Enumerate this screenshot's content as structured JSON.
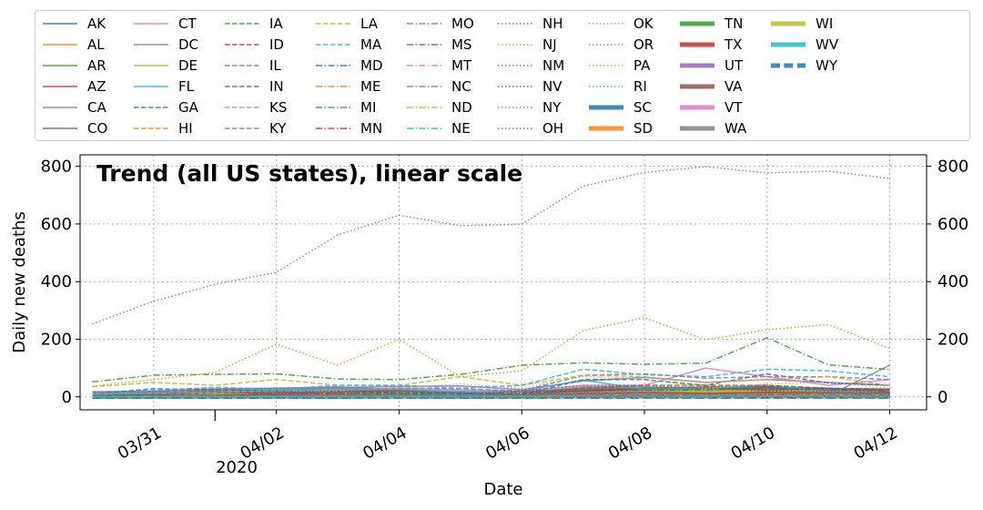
{
  "chart_data": {
    "type": "line",
    "title": "Trend (all US states), linear scale",
    "xlabel": "Date",
    "ylabel": "Daily new deaths",
    "x_year_label": "2020",
    "x_ticks": [
      "03/31",
      "04/02",
      "04/04",
      "04/06",
      "04/08",
      "04/10",
      "04/12"
    ],
    "x": [
      "2020-03-30",
      "2020-03-31",
      "2020-04-01",
      "2020-04-02",
      "2020-04-03",
      "2020-04-04",
      "2020-04-05",
      "2020-04-06",
      "2020-04-07",
      "2020-04-08",
      "2020-04-09",
      "2020-04-10",
      "2020-04-11",
      "2020-04-12"
    ],
    "xlim": [
      "2020-03-29.8",
      "2020-04-12.6"
    ],
    "ylim": [
      -45,
      840
    ],
    "y_ticks": [
      0,
      200,
      400,
      600,
      800
    ],
    "grid": true,
    "legend_position": "top",
    "series": [
      {
        "name": "AK",
        "color": "#1f77b4",
        "dash": "solid",
        "width": 1.5,
        "values": [
          0,
          0,
          0,
          1,
          0,
          0,
          1,
          0,
          0,
          0,
          1,
          0,
          0,
          0
        ]
      },
      {
        "name": "AL",
        "color": "#ff7f0e",
        "dash": "solid",
        "width": 1.5,
        "values": [
          2,
          4,
          5,
          6,
          8,
          4,
          3,
          5,
          12,
          10,
          8,
          12,
          8,
          6
        ]
      },
      {
        "name": "AR",
        "color": "#2ca02c",
        "dash": "solid",
        "width": 1.5,
        "values": [
          1,
          1,
          2,
          2,
          2,
          3,
          2,
          2,
          3,
          2,
          3,
          4,
          3,
          2
        ]
      },
      {
        "name": "AZ",
        "color": "#d62728",
        "dash": "solid",
        "width": 1.5,
        "values": [
          3,
          5,
          5,
          6,
          5,
          6,
          5,
          4,
          11,
          15,
          12,
          16,
          14,
          12
        ]
      },
      {
        "name": "CA",
        "color": "#9467bd",
        "dash": "solid",
        "width": 1.5,
        "values": [
          18,
          20,
          28,
          30,
          32,
          36,
          38,
          25,
          55,
          68,
          50,
          60,
          50,
          40
        ]
      },
      {
        "name": "CO",
        "color": "#8c564b",
        "dash": "solid",
        "width": 1.5,
        "values": [
          6,
          8,
          18,
          10,
          20,
          20,
          14,
          6,
          22,
          30,
          32,
          24,
          30,
          16
        ]
      },
      {
        "name": "CT",
        "color": "#e377c2",
        "dash": "solid",
        "width": 1.5,
        "values": [
          8,
          12,
          16,
          20,
          24,
          30,
          25,
          20,
          40,
          40,
          100,
          70,
          40,
          60
        ]
      },
      {
        "name": "DC",
        "color": "#7f7f7f",
        "dash": "solid",
        "width": 1.5,
        "values": [
          2,
          1,
          2,
          1,
          3,
          4,
          2,
          3,
          3,
          4,
          3,
          3,
          4,
          110
        ]
      },
      {
        "name": "DE",
        "color": "#bcbd22",
        "dash": "solid",
        "width": 1.5,
        "values": [
          0,
          1,
          1,
          2,
          1,
          2,
          1,
          3,
          3,
          4,
          2,
          4,
          5,
          3
        ]
      },
      {
        "name": "FL",
        "color": "#17becf",
        "dash": "solid",
        "width": 1.5,
        "values": [
          8,
          12,
          20,
          20,
          30,
          26,
          16,
          20,
          58,
          26,
          30,
          40,
          20,
          20
        ]
      },
      {
        "name": "GA",
        "color": "#1f77b4",
        "dash": "dashed",
        "width": 1.5,
        "values": [
          10,
          28,
          25,
          20,
          20,
          14,
          13,
          8,
          60,
          60,
          40,
          80,
          48,
          40
        ]
      },
      {
        "name": "HI",
        "color": "#ff7f0e",
        "dash": "dashed",
        "width": 1.5,
        "values": [
          0,
          0,
          0,
          1,
          0,
          0,
          1,
          0,
          0,
          0,
          2,
          0,
          0,
          1
        ]
      },
      {
        "name": "IA",
        "color": "#2ca02c",
        "dash": "dashed",
        "width": 1.5,
        "values": [
          1,
          1,
          1,
          2,
          3,
          1,
          2,
          2,
          2,
          3,
          2,
          4,
          2,
          3
        ]
      },
      {
        "name": "ID",
        "color": "#d62728",
        "dash": "dashed",
        "width": 1.5,
        "values": [
          1,
          1,
          1,
          2,
          2,
          1,
          2,
          2,
          1,
          3,
          2,
          3,
          2,
          2
        ]
      },
      {
        "name": "IL",
        "color": "#9467bd",
        "dash": "dashed",
        "width": 1.5,
        "values": [
          10,
          15,
          22,
          16,
          20,
          30,
          28,
          20,
          75,
          80,
          65,
          70,
          70,
          60
        ]
      },
      {
        "name": "IN",
        "color": "#8c564b",
        "dash": "dashed",
        "width": 1.5,
        "values": [
          5,
          8,
          14,
          15,
          12,
          12,
          10,
          10,
          30,
          40,
          40,
          40,
          30,
          26
        ]
      },
      {
        "name": "KS",
        "color": "#e377c2",
        "dash": "dashed",
        "width": 1.5,
        "values": [
          1,
          2,
          2,
          2,
          3,
          3,
          2,
          3,
          3,
          4,
          3,
          5,
          4,
          3
        ]
      },
      {
        "name": "KY",
        "color": "#7f7f7f",
        "dash": "dashed",
        "width": 1.5,
        "values": [
          3,
          2,
          2,
          5,
          4,
          5,
          3,
          5,
          7,
          6,
          10,
          8,
          6,
          5
        ]
      },
      {
        "name": "LA",
        "color": "#bcbd22",
        "dash": "dashed",
        "width": 1.5,
        "values": [
          35,
          50,
          40,
          60,
          40,
          40,
          70,
          40,
          75,
          70,
          50,
          60,
          70,
          40
        ]
      },
      {
        "name": "MA",
        "color": "#17becf",
        "dash": "dashed",
        "width": 1.5,
        "values": [
          8,
          22,
          33,
          26,
          40,
          40,
          30,
          40,
          96,
          77,
          70,
          96,
          90,
          70
        ]
      },
      {
        "name": "MD",
        "color": "#1f77b4",
        "dash": "dashdot",
        "width": 1.5,
        "values": [
          3,
          5,
          5,
          10,
          12,
          12,
          10,
          15,
          20,
          23,
          25,
          30,
          25,
          20
        ]
      },
      {
        "name": "ME",
        "color": "#ff7f0e",
        "dash": "dashdot",
        "width": 1.5,
        "values": [
          0,
          1,
          1,
          1,
          2,
          1,
          1,
          1,
          2,
          2,
          1,
          2,
          1,
          2
        ]
      },
      {
        "name": "MI",
        "color": "#2ca02c",
        "dash": "dashdot",
        "width": 1.5,
        "values": [
          52,
          75,
          78,
          80,
          62,
          60,
          78,
          110,
          118,
          113,
          117,
          205,
          111,
          95
        ]
      },
      {
        "name": "MN",
        "color": "#d62728",
        "dash": "dashdot",
        "width": 1.5,
        "values": [
          1,
          2,
          2,
          3,
          4,
          3,
          4,
          5,
          5,
          6,
          4,
          7,
          9,
          5
        ]
      },
      {
        "name": "MO",
        "color": "#9467bd",
        "dash": "dashdot",
        "width": 1.5,
        "values": [
          1,
          4,
          5,
          5,
          5,
          6,
          8,
          5,
          12,
          14,
          8,
          10,
          12,
          10
        ]
      },
      {
        "name": "MS",
        "color": "#8c564b",
        "dash": "dashdot",
        "width": 1.5,
        "values": [
          1,
          3,
          4,
          5,
          7,
          6,
          5,
          6,
          7,
          8,
          6,
          8,
          10,
          8
        ]
      },
      {
        "name": "MT",
        "color": "#e377c2",
        "dash": "dashdot",
        "width": 1.5,
        "values": [
          0,
          1,
          0,
          1,
          1,
          0,
          1,
          1,
          1,
          0,
          1,
          1,
          1,
          0
        ]
      },
      {
        "name": "NC",
        "color": "#7f7f7f",
        "dash": "dashdot",
        "width": 1.5,
        "values": [
          1,
          3,
          2,
          5,
          4,
          6,
          5,
          4,
          8,
          9,
          7,
          10,
          8,
          6
        ]
      },
      {
        "name": "ND",
        "color": "#bcbd22",
        "dash": "dashdot",
        "width": 1.5,
        "values": [
          0,
          0,
          1,
          0,
          1,
          1,
          0,
          1,
          1,
          1,
          0,
          1,
          1,
          0
        ]
      },
      {
        "name": "NE",
        "color": "#17becf",
        "dash": "dashdot",
        "width": 1.5,
        "values": [
          0,
          1,
          1,
          1,
          0,
          2,
          1,
          1,
          1,
          2,
          1,
          2,
          1,
          1
        ]
      },
      {
        "name": "NH",
        "color": "#1f77b4",
        "dash": "dotted",
        "width": 1.5,
        "values": [
          1,
          1,
          0,
          1,
          1,
          1,
          0,
          2,
          1,
          1,
          2,
          1,
          1,
          2
        ]
      },
      {
        "name": "NJ",
        "color": "#ff7f0e",
        "dash": "dotted",
        "width": 1.5,
        "values": [
          37,
          60,
          85,
          183,
          110,
          200,
          70,
          90,
          230,
          275,
          198,
          233,
          251,
          168
        ]
      },
      {
        "name": "NM",
        "color": "#2ca02c",
        "dash": "dotted",
        "width": 1.5,
        "values": [
          0,
          1,
          0,
          1,
          1,
          2,
          1,
          1,
          2,
          2,
          1,
          2,
          3,
          2
        ]
      },
      {
        "name": "NV",
        "color": "#d62728",
        "dash": "dotted",
        "width": 1.5,
        "values": [
          3,
          4,
          5,
          8,
          5,
          6,
          4,
          7,
          14,
          12,
          10,
          12,
          8,
          7
        ]
      },
      {
        "name": "NY",
        "color": "#9467bd",
        "dash": "dotted",
        "width": 1.5,
        "values": [
          253,
          332,
          391,
          432,
          562,
          630,
          594,
          599,
          731,
          779,
          799,
          777,
          783,
          758
        ]
      },
      {
        "name": "OH",
        "color": "#8c564b",
        "dash": "dotted",
        "width": 1.5,
        "values": [
          5,
          10,
          20,
          10,
          10,
          20,
          10,
          20,
          40,
          40,
          30,
          20,
          20,
          16
        ]
      },
      {
        "name": "OK",
        "color": "#e377c2",
        "dash": "dotted",
        "width": 1.5,
        "values": [
          2,
          3,
          2,
          4,
          5,
          3,
          4,
          5,
          6,
          7,
          5,
          6,
          7,
          5
        ]
      },
      {
        "name": "OR",
        "color": "#7f7f7f",
        "dash": "dotted",
        "width": 1.5,
        "values": [
          1,
          1,
          2,
          1,
          2,
          1,
          2,
          2,
          1,
          3,
          2,
          3,
          2,
          3
        ]
      },
      {
        "name": "PA",
        "color": "#bcbd22",
        "dash": "dotted",
        "width": 1.5,
        "values": [
          10,
          12,
          16,
          20,
          20,
          30,
          45,
          30,
          70,
          63,
          30,
          45,
          50,
          30
        ]
      },
      {
        "name": "RI",
        "color": "#17becf",
        "dash": "dotted",
        "width": 1.5,
        "values": [
          0,
          2,
          2,
          2,
          3,
          4,
          5,
          4,
          8,
          10,
          8,
          12,
          10,
          10
        ]
      },
      {
        "name": "SC",
        "color": "#1f77b4",
        "dash": "solid",
        "width": 4.5,
        "values": [
          2,
          3,
          2,
          5,
          4,
          5,
          4,
          6,
          8,
          10,
          9,
          11,
          12,
          10
        ]
      },
      {
        "name": "SD",
        "color": "#ff7f0e",
        "dash": "solid",
        "width": 4.5,
        "values": [
          0,
          0,
          1,
          0,
          1,
          1,
          0,
          0,
          1,
          1,
          1,
          2,
          1,
          1
        ]
      },
      {
        "name": "TN",
        "color": "#2ca02c",
        "dash": "solid",
        "width": 4.5,
        "values": [
          3,
          5,
          4,
          6,
          5,
          6,
          8,
          8,
          10,
          12,
          8,
          10,
          9,
          7
        ]
      },
      {
        "name": "TX",
        "color": "#d62728",
        "dash": "solid",
        "width": 4.5,
        "values": [
          5,
          8,
          14,
          14,
          15,
          15,
          12,
          12,
          25,
          25,
          30,
          30,
          25,
          22
        ]
      },
      {
        "name": "UT",
        "color": "#9467bd",
        "dash": "solid",
        "width": 4.5,
        "values": [
          1,
          1,
          1,
          1,
          2,
          1,
          2,
          1,
          2,
          2,
          2,
          3,
          2,
          2
        ]
      },
      {
        "name": "VA",
        "color": "#8c564b",
        "dash": "solid",
        "width": 4.5,
        "values": [
          5,
          10,
          12,
          10,
          15,
          14,
          10,
          15,
          20,
          20,
          25,
          30,
          20,
          18
        ]
      },
      {
        "name": "VT",
        "color": "#e377c2",
        "dash": "solid",
        "width": 4.5,
        "values": [
          1,
          2,
          1,
          2,
          3,
          2,
          3,
          2,
          3,
          3,
          2,
          4,
          2,
          3
        ]
      },
      {
        "name": "WA",
        "color": "#7f7f7f",
        "dash": "solid",
        "width": 4.5,
        "values": [
          10,
          15,
          20,
          25,
          30,
          20,
          15,
          10,
          30,
          30,
          25,
          25,
          25,
          10
        ]
      },
      {
        "name": "WI",
        "color": "#bcbd22",
        "dash": "solid",
        "width": 4.5,
        "values": [
          4,
          5,
          8,
          8,
          8,
          12,
          10,
          10,
          10,
          15,
          20,
          20,
          14,
          15
        ]
      },
      {
        "name": "WV",
        "color": "#17becf",
        "dash": "solid",
        "width": 4.5,
        "values": [
          0,
          0,
          1,
          1,
          0,
          1,
          0,
          1,
          1,
          2,
          1,
          1,
          2,
          1
        ]
      },
      {
        "name": "WY",
        "color": "#1f77b4",
        "dash": "dashed",
        "width": 4.5,
        "values": [
          0,
          0,
          0,
          0,
          0,
          0,
          0,
          0,
          0,
          0,
          0,
          0,
          0,
          0
        ]
      }
    ]
  }
}
